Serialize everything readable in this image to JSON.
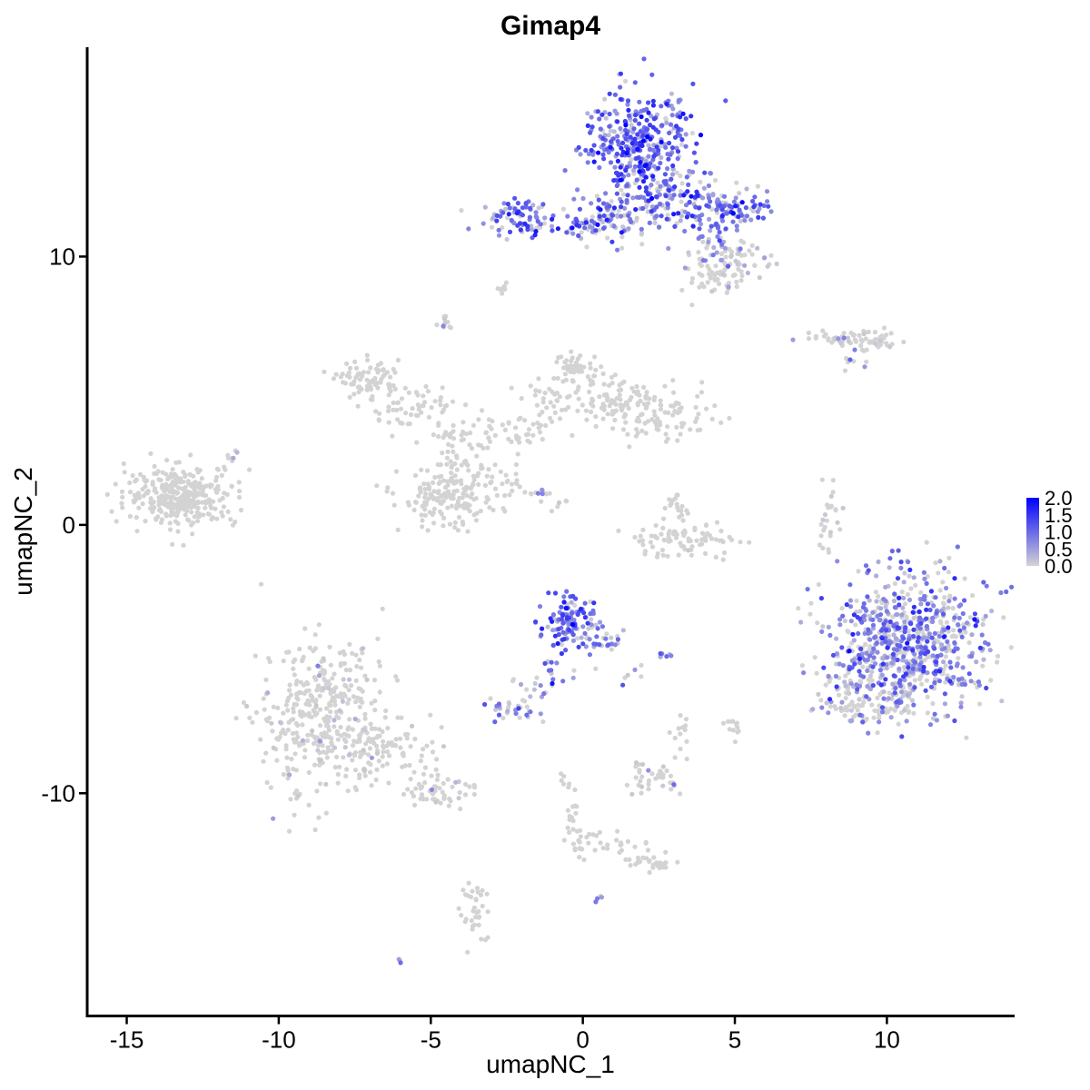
{
  "chart_data": {
    "type": "scatter",
    "title": "Gimap4",
    "xlabel": "umapNC_1",
    "ylabel": "umapNC_2",
    "xlim": [
      -16.3,
      14.2
    ],
    "ylim": [
      -18.3,
      17.8
    ],
    "x_ticks": [
      -15,
      -10,
      -5,
      0,
      5,
      10
    ],
    "x_tick_labels": [
      "-15",
      "-10",
      "-5",
      "0",
      "5",
      "10"
    ],
    "y_ticks": [
      -10,
      0,
      10
    ],
    "y_tick_labels": [
      "-10",
      "0",
      "10"
    ],
    "grid": false,
    "legend_position": "right",
    "color_scale": {
      "low": "#d3d3d3",
      "high": "#0000ff",
      "min": 0.0,
      "max": 2.0,
      "ticks": [
        2.0,
        1.5,
        1.0,
        0.5,
        0.0
      ],
      "tick_labels": [
        "2.0",
        "1.5",
        "1.0",
        "0.5",
        "0.0"
      ]
    },
    "clusters": [
      {
        "center": [
          1.8,
          14.2
        ],
        "spread": [
          0.9,
          1.1
        ],
        "count": 380,
        "expr_mean": 0.95
      },
      {
        "center": [
          3.2,
          12.0
        ],
        "spread": [
          1.2,
          0.6
        ],
        "count": 160,
        "expr_mean": 0.85
      },
      {
        "center": [
          5.0,
          11.7
        ],
        "spread": [
          0.5,
          0.3
        ],
        "count": 60,
        "expr_mean": 0.9
      },
      {
        "center": [
          -2.0,
          11.4
        ],
        "spread": [
          0.6,
          0.35
        ],
        "count": 80,
        "expr_mean": 0.9
      },
      {
        "center": [
          0.0,
          11.1
        ],
        "spread": [
          0.5,
          0.2
        ],
        "count": 40,
        "expr_mean": 0.85
      },
      {
        "center": [
          1.1,
          11.3
        ],
        "spread": [
          0.5,
          0.4
        ],
        "count": 50,
        "expr_mean": 0.7
      },
      {
        "center": [
          4.2,
          10.2
        ],
        "spread": [
          0.6,
          0.4
        ],
        "count": 40,
        "expr_mean": 0.55
      },
      {
        "center": [
          5.2,
          9.7
        ],
        "spread": [
          0.45,
          0.4
        ],
        "count": 45,
        "expr_mean": 0.25
      },
      {
        "center": [
          4.3,
          9.1
        ],
        "spread": [
          0.6,
          0.3
        ],
        "count": 40,
        "expr_mean": 0.05
      },
      {
        "center": [
          -2.7,
          8.8
        ],
        "spread": [
          0.12,
          0.1
        ],
        "count": 8,
        "expr_mean": 0.0
      },
      {
        "center": [
          -4.5,
          7.5
        ],
        "spread": [
          0.15,
          0.25
        ],
        "count": 10,
        "expr_mean": 0.05
      },
      {
        "center": [
          8.2,
          6.9
        ],
        "spread": [
          0.55,
          0.12
        ],
        "count": 35,
        "expr_mean": 0.15
      },
      {
        "center": [
          9.5,
          6.9
        ],
        "spread": [
          0.4,
          0.2
        ],
        "count": 40,
        "expr_mean": 0.05
      },
      {
        "center": [
          8.8,
          6.1
        ],
        "spread": [
          0.25,
          0.25
        ],
        "count": 8,
        "expr_mean": 0.55
      },
      {
        "center": [
          -13.2,
          1.1
        ],
        "spread": [
          0.9,
          0.55
        ],
        "count": 320,
        "expr_mean": 0.0
      },
      {
        "center": [
          -11.6,
          2.5
        ],
        "spread": [
          0.25,
          0.2
        ],
        "count": 8,
        "expr_mean": 0.15
      },
      {
        "center": [
          -7.0,
          5.4
        ],
        "spread": [
          0.5,
          0.35
        ],
        "count": 80,
        "expr_mean": 0.0
      },
      {
        "center": [
          -5.5,
          4.3
        ],
        "spread": [
          0.8,
          0.5
        ],
        "count": 60,
        "expr_mean": 0.0
      },
      {
        "center": [
          -4.4,
          1.0
        ],
        "spread": [
          0.8,
          0.6
        ],
        "count": 170,
        "expr_mean": 0.0
      },
      {
        "center": [
          -4.2,
          2.8
        ],
        "spread": [
          0.4,
          0.8
        ],
        "count": 40,
        "expr_mean": 0.0
      },
      {
        "center": [
          -2.5,
          3.3
        ],
        "spread": [
          0.6,
          0.4
        ],
        "count": 40,
        "expr_mean": 0.0
      },
      {
        "center": [
          -1.0,
          4.5
        ],
        "spread": [
          0.6,
          0.4
        ],
        "count": 40,
        "expr_mean": 0.0
      },
      {
        "center": [
          -0.2,
          5.8
        ],
        "spread": [
          0.4,
          0.3
        ],
        "count": 50,
        "expr_mean": 0.0
      },
      {
        "center": [
          1.0,
          4.8
        ],
        "spread": [
          0.6,
          0.45
        ],
        "count": 60,
        "expr_mean": 0.0
      },
      {
        "center": [
          2.6,
          4.1
        ],
        "spread": [
          0.9,
          0.5
        ],
        "count": 100,
        "expr_mean": 0.0
      },
      {
        "center": [
          -2.5,
          1.5
        ],
        "spread": [
          0.35,
          0.3
        ],
        "count": 20,
        "expr_mean": 0.0
      },
      {
        "center": [
          -1.5,
          1.2
        ],
        "spread": [
          0.2,
          0.1
        ],
        "count": 8,
        "expr_mean": 0.3
      },
      {
        "center": [
          -1.0,
          0.8
        ],
        "spread": [
          0.3,
          0.2
        ],
        "count": 8,
        "expr_mean": 0.1
      },
      {
        "center": [
          3.1,
          0.6
        ],
        "spread": [
          0.3,
          0.35
        ],
        "count": 20,
        "expr_mean": 0.0
      },
      {
        "center": [
          3.3,
          -0.6
        ],
        "spread": [
          0.9,
          0.3
        ],
        "count": 80,
        "expr_mean": 0.02
      },
      {
        "center": [
          8.1,
          0.5
        ],
        "spread": [
          0.2,
          0.5
        ],
        "count": 18,
        "expr_mean": 0.35
      },
      {
        "center": [
          7.9,
          -0.5
        ],
        "spread": [
          0.12,
          0.3
        ],
        "count": 8,
        "expr_mean": 0.05
      },
      {
        "center": [
          10.7,
          -4.3
        ],
        "spread": [
          1.3,
          1.3
        ],
        "count": 720,
        "expr_mean": 0.7
      },
      {
        "center": [
          8.9,
          -5.8
        ],
        "spread": [
          0.5,
          0.9
        ],
        "count": 60,
        "expr_mean": 0.55
      },
      {
        "center": [
          9.5,
          -6.8
        ],
        "spread": [
          0.8,
          0.25
        ],
        "count": 60,
        "expr_mean": 0.15
      },
      {
        "center": [
          -0.5,
          -3.6
        ],
        "spread": [
          0.45,
          0.5
        ],
        "count": 110,
        "expr_mean": 0.95
      },
      {
        "center": [
          0.6,
          -4.3
        ],
        "spread": [
          0.4,
          0.4
        ],
        "count": 30,
        "expr_mean": 0.6
      },
      {
        "center": [
          -1.0,
          -5.3
        ],
        "spread": [
          0.25,
          0.3
        ],
        "count": 12,
        "expr_mean": 0.8
      },
      {
        "center": [
          -1.6,
          -6.0
        ],
        "spread": [
          0.35,
          0.35
        ],
        "count": 15,
        "expr_mean": 0.7
      },
      {
        "center": [
          -2.3,
          -6.9
        ],
        "spread": [
          0.35,
          0.2
        ],
        "count": 30,
        "expr_mean": 0.7
      },
      {
        "center": [
          1.5,
          -5.5
        ],
        "spread": [
          0.2,
          0.3
        ],
        "count": 6,
        "expr_mean": 0.5
      },
      {
        "center": [
          2.8,
          -4.9
        ],
        "spread": [
          0.15,
          0.1
        ],
        "count": 6,
        "expr_mean": 0.85
      },
      {
        "center": [
          -8.6,
          -7.2
        ],
        "spread": [
          1.0,
          1.4
        ],
        "count": 380,
        "expr_mean": 0.02
      },
      {
        "center": [
          -6.5,
          -8.3
        ],
        "spread": [
          0.8,
          0.6
        ],
        "count": 80,
        "expr_mean": 0.02
      },
      {
        "center": [
          -4.8,
          -9.8
        ],
        "spread": [
          0.7,
          0.35
        ],
        "count": 60,
        "expr_mean": 0.03
      },
      {
        "center": [
          3.2,
          -7.8
        ],
        "spread": [
          0.2,
          0.3
        ],
        "count": 12,
        "expr_mean": 0.0
      },
      {
        "center": [
          5.0,
          -7.6
        ],
        "spread": [
          0.15,
          0.3
        ],
        "count": 12,
        "expr_mean": 0.0
      },
      {
        "center": [
          2.3,
          -9.4
        ],
        "spread": [
          0.5,
          0.3
        ],
        "count": 40,
        "expr_mean": 0.05
      },
      {
        "center": [
          -0.6,
          -9.5
        ],
        "spread": [
          0.1,
          0.2
        ],
        "count": 6,
        "expr_mean": 0.0
      },
      {
        "center": [
          -0.3,
          -10.7
        ],
        "spread": [
          0.15,
          0.5
        ],
        "count": 15,
        "expr_mean": 0.0
      },
      {
        "center": [
          0.0,
          -11.8
        ],
        "spread": [
          0.3,
          0.3
        ],
        "count": 20,
        "expr_mean": 0.0
      },
      {
        "center": [
          1.2,
          -11.9
        ],
        "spread": [
          0.5,
          0.15
        ],
        "count": 15,
        "expr_mean": 0.0
      },
      {
        "center": [
          2.3,
          -12.6
        ],
        "spread": [
          0.5,
          0.2
        ],
        "count": 30,
        "expr_mean": 0.0
      },
      {
        "center": [
          -3.5,
          -14.5
        ],
        "spread": [
          0.25,
          0.6
        ],
        "count": 35,
        "expr_mean": 0.0
      },
      {
        "center": [
          0.6,
          -13.9
        ],
        "spread": [
          0.1,
          0.08
        ],
        "count": 4,
        "expr_mean": 0.6
      },
      {
        "center": [
          -6.0,
          -16.2
        ],
        "spread": [
          0.08,
          0.08
        ],
        "count": 3,
        "expr_mean": 0.5
      }
    ]
  }
}
